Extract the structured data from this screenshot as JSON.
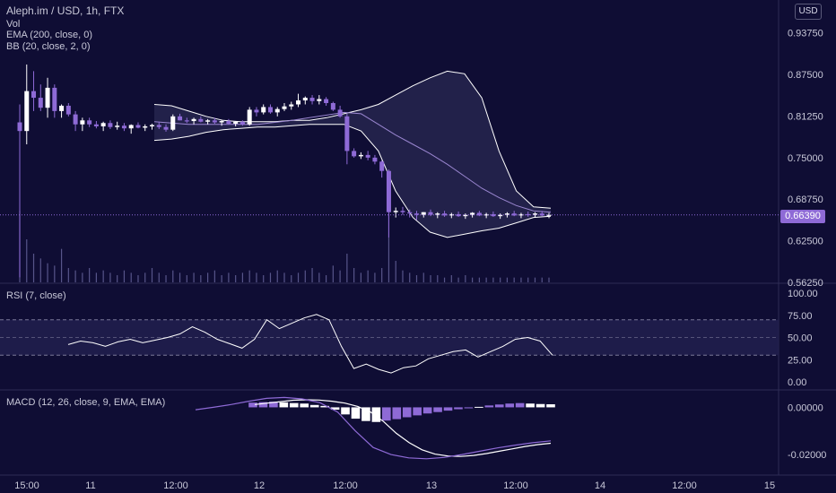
{
  "header": {
    "title": "Aleph.im / USD, 1h, FTX",
    "volume_label": "Vol",
    "ema_label": "EMA (200, close, 0)",
    "bb_label": "BB (20, close, 2, 0)",
    "currency": "USD"
  },
  "chart_data": [
    {
      "type": "candlestick",
      "pane": "price",
      "symbol": "Aleph.im / USD",
      "interval": "1h",
      "exchange": "FTX",
      "ylim": [
        0.5625,
        0.96
      ],
      "y_ticks": [
        "0.93750",
        "0.87500",
        "0.81250",
        "0.75000",
        "0.68750",
        "0.62500",
        "0.56250"
      ],
      "last_price": "0.66390",
      "x_ticks": [
        "15:00",
        "11",
        "12:00",
        "12",
        "12:00",
        "13",
        "12:00",
        "14",
        "12:00",
        "15"
      ],
      "series": [
        {
          "name": "Aleph.im / USD",
          "ohlc": [
            [
              0.803,
              0.83,
              0.57,
              0.79
            ],
            [
              0.79,
              0.89,
              0.77,
              0.85
            ],
            [
              0.85,
              0.88,
              0.82,
              0.84
            ],
            [
              0.84,
              0.86,
              0.82,
              0.825
            ],
            [
              0.825,
              0.87,
              0.81,
              0.855
            ],
            [
              0.855,
              0.86,
              0.81,
              0.82
            ],
            [
              0.82,
              0.83,
              0.81,
              0.828
            ],
            [
              0.828,
              0.832,
              0.812,
              0.815
            ],
            [
              0.815,
              0.82,
              0.79,
              0.8
            ],
            [
              0.8,
              0.81,
              0.79,
              0.806
            ],
            [
              0.806,
              0.81,
              0.796,
              0.8
            ],
            [
              0.8,
              0.805,
              0.794,
              0.797
            ],
            [
              0.797,
              0.804,
              0.79,
              0.802
            ],
            [
              0.802,
              0.806,
              0.793,
              0.796
            ],
            [
              0.796,
              0.804,
              0.792,
              0.798
            ],
            [
              0.798,
              0.802,
              0.79,
              0.794
            ],
            [
              0.794,
              0.8,
              0.786,
              0.799
            ],
            [
              0.799,
              0.803,
              0.794,
              0.795
            ],
            [
              0.795,
              0.8,
              0.79,
              0.797
            ],
            [
              0.797,
              0.801,
              0.792,
              0.799
            ],
            [
              0.799,
              0.804,
              0.793,
              0.796
            ],
            [
              0.796,
              0.8,
              0.789,
              0.792
            ],
            [
              0.792,
              0.815,
              0.79,
              0.812
            ],
            [
              0.812,
              0.816,
              0.806,
              0.806
            ],
            [
              0.806,
              0.81,
              0.802,
              0.805
            ],
            [
              0.805,
              0.81,
              0.8,
              0.808
            ],
            [
              0.808,
              0.812,
              0.803,
              0.804
            ],
            [
              0.804,
              0.808,
              0.8,
              0.806
            ],
            [
              0.806,
              0.81,
              0.801,
              0.803
            ],
            [
              0.803,
              0.806,
              0.798,
              0.805
            ],
            [
              0.805,
              0.808,
              0.8,
              0.801
            ],
            [
              0.801,
              0.805,
              0.797,
              0.804
            ],
            [
              0.804,
              0.806,
              0.798,
              0.8
            ],
            [
              0.8,
              0.826,
              0.798,
              0.822
            ],
            [
              0.822,
              0.826,
              0.812,
              0.818
            ],
            [
              0.818,
              0.83,
              0.815,
              0.826
            ],
            [
              0.826,
              0.83,
              0.816,
              0.818
            ],
            [
              0.818,
              0.826,
              0.812,
              0.823
            ],
            [
              0.823,
              0.832,
              0.82,
              0.827
            ],
            [
              0.827,
              0.834,
              0.822,
              0.83
            ],
            [
              0.83,
              0.846,
              0.826,
              0.836
            ],
            [
              0.836,
              0.842,
              0.83,
              0.84
            ],
            [
              0.84,
              0.844,
              0.83,
              0.835
            ],
            [
              0.835,
              0.844,
              0.83,
              0.838
            ],
            [
              0.838,
              0.841,
              0.828,
              0.832
            ],
            [
              0.832,
              0.834,
              0.82,
              0.822
            ],
            [
              0.822,
              0.828,
              0.81,
              0.812
            ],
            [
              0.812,
              0.816,
              0.74,
              0.76
            ],
            [
              0.76,
              0.764,
              0.75,
              0.752
            ],
            [
              0.752,
              0.758,
              0.748,
              0.754
            ],
            [
              0.754,
              0.76,
              0.746,
              0.75
            ],
            [
              0.75,
              0.754,
              0.74,
              0.744
            ],
            [
              0.744,
              0.746,
              0.72,
              0.73
            ],
            [
              0.73,
              0.732,
              0.63,
              0.668
            ],
            [
              0.668,
              0.675,
              0.66,
              0.67
            ],
            [
              0.67,
              0.676,
              0.664,
              0.668
            ],
            [
              0.668,
              0.672,
              0.66,
              0.666
            ],
            [
              0.666,
              0.67,
              0.656,
              0.664
            ],
            [
              0.664,
              0.668,
              0.66,
              0.668
            ],
            [
              0.668,
              0.672,
              0.662,
              0.664
            ],
            [
              0.664,
              0.668,
              0.659,
              0.666
            ],
            [
              0.666,
              0.67,
              0.661,
              0.663
            ],
            [
              0.663,
              0.667,
              0.659,
              0.665
            ],
            [
              0.665,
              0.669,
              0.661,
              0.662
            ],
            [
              0.662,
              0.666,
              0.658,
              0.664
            ],
            [
              0.664,
              0.668,
              0.66,
              0.667
            ],
            [
              0.667,
              0.67,
              0.662,
              0.663
            ],
            [
              0.663,
              0.667,
              0.659,
              0.665
            ],
            [
              0.665,
              0.669,
              0.661,
              0.662
            ],
            [
              0.662,
              0.666,
              0.658,
              0.664
            ],
            [
              0.664,
              0.668,
              0.66,
              0.666
            ],
            [
              0.666,
              0.67,
              0.662,
              0.663
            ],
            [
              0.663,
              0.667,
              0.659,
              0.665
            ],
            [
              0.665,
              0.669,
              0.661,
              0.664
            ],
            [
              0.664,
              0.668,
              0.66,
              0.666
            ],
            [
              0.666,
              0.67,
              0.662,
              0.663
            ],
            [
              0.663,
              0.667,
              0.659,
              0.664
            ]
          ]
        },
        {
          "name": "BB upper",
          "values": [
            0.83,
            0.828,
            0.82,
            0.812,
            0.806,
            0.804,
            0.804,
            0.804,
            0.806,
            0.806,
            0.81,
            0.816,
            0.822,
            0.83,
            0.844,
            0.858,
            0.87,
            0.88,
            0.876,
            0.84,
            0.76,
            0.7,
            0.676,
            0.674
          ]
        },
        {
          "name": "BB basis",
          "values": [
            0.804,
            0.802,
            0.8,
            0.8,
            0.8,
            0.8,
            0.8,
            0.803,
            0.806,
            0.81,
            0.814,
            0.818,
            0.816,
            0.8,
            0.784,
            0.77,
            0.756,
            0.74,
            0.722,
            0.704,
            0.69,
            0.678,
            0.67,
            0.668
          ]
        },
        {
          "name": "BB lower",
          "values": [
            0.776,
            0.778,
            0.782,
            0.788,
            0.792,
            0.794,
            0.796,
            0.796,
            0.798,
            0.8,
            0.8,
            0.8,
            0.79,
            0.76,
            0.7,
            0.66,
            0.638,
            0.63,
            0.635,
            0.64,
            0.644,
            0.652,
            0.66,
            0.662
          ]
        }
      ],
      "volume": [
        30,
        18,
        12,
        10,
        8,
        7,
        14,
        6,
        5,
        4,
        6,
        4,
        5,
        4,
        3,
        5,
        4,
        3,
        4,
        6,
        4,
        3,
        5,
        4,
        3,
        4,
        3,
        4,
        5,
        3,
        4,
        3,
        4,
        5,
        4,
        3,
        4,
        5,
        4,
        3,
        4,
        5,
        6,
        4,
        3,
        7,
        5,
        12,
        6,
        4,
        5,
        4,
        6,
        28,
        9,
        5,
        4,
        3,
        4,
        3,
        3,
        2,
        3,
        2,
        3,
        2,
        2,
        2,
        2,
        2,
        2,
        2,
        2,
        2,
        2,
        2,
        2
      ]
    },
    {
      "type": "line",
      "pane": "rsi",
      "title": "RSI (7, close)",
      "ylim": [
        0,
        100
      ],
      "y_ticks": [
        "100.00",
        "75.00",
        "50.00",
        "25.00",
        "0.00"
      ],
      "bands": [
        70,
        30
      ],
      "series": [
        {
          "name": "RSI",
          "values": [
            42,
            46,
            44,
            40,
            45,
            48,
            44,
            47,
            50,
            54,
            62,
            56,
            48,
            43,
            38,
            48,
            70,
            60,
            66,
            72,
            76,
            70,
            40,
            15,
            20,
            14,
            10,
            16,
            18,
            26,
            30,
            34,
            36,
            28,
            34,
            40,
            48,
            50,
            46,
            30
          ]
        }
      ]
    },
    {
      "type": "bar",
      "pane": "macd",
      "title": "MACD (12, 26, close, 9, EMA, EMA)",
      "ylim": [
        -0.0268,
        0.007
      ],
      "y_ticks": [
        "0.00000",
        "-0.02000"
      ],
      "histogram": [
        0.002,
        0.0022,
        0.0024,
        0.0021,
        0.0018,
        0.0016,
        0.001,
        0.0006,
        -0.001,
        -0.003,
        -0.0048,
        -0.0058,
        -0.0062,
        -0.0056,
        -0.005,
        -0.0042,
        -0.0034,
        -0.0026,
        -0.002,
        -0.0014,
        -0.0008,
        -0.0004,
        0.0002,
        0.0008,
        0.0012,
        0.0016,
        0.0018,
        0.0016,
        0.0014,
        0.0013
      ],
      "series": [
        {
          "name": "MACD",
          "values": [
            0.0012,
            0.0018,
            0.0024,
            0.003,
            0.0032,
            0.0031,
            0.0026,
            0.0018,
            0.0004,
            -0.002,
            -0.006,
            -0.011,
            -0.015,
            -0.018,
            -0.0198,
            -0.0206,
            -0.0208,
            -0.0204,
            -0.0196,
            -0.0186,
            -0.0176,
            -0.0166,
            -0.0158,
            -0.0152
          ]
        },
        {
          "name": "Signal",
          "values": [
            -0.001,
            0.0,
            0.0012,
            0.0026,
            0.0038,
            0.0042,
            0.0036,
            0.002,
            -0.002,
            -0.01,
            -0.017,
            -0.02,
            -0.0214,
            -0.0218,
            -0.0212,
            -0.02,
            -0.0186,
            -0.0172,
            -0.016,
            -0.015,
            -0.0142
          ]
        }
      ]
    }
  ]
}
